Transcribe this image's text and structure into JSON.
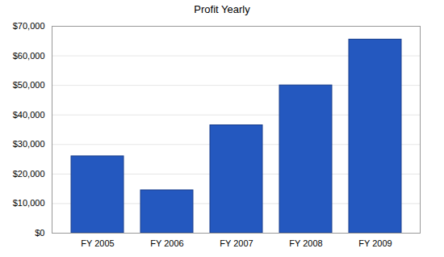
{
  "chart_data": {
    "type": "bar",
    "title": "Profit Yearly",
    "categories": [
      "FY 2005",
      "FY 2006",
      "FY 2007",
      "FY 2008",
      "FY 2009"
    ],
    "values": [
      26000,
      14500,
      36500,
      50000,
      65500
    ],
    "color": "#2458bf",
    "ylim": [
      0,
      70000
    ],
    "yticks": [
      {
        "value": 0,
        "label": "$0"
      },
      {
        "value": 10000,
        "label": "$10,000"
      },
      {
        "value": 20000,
        "label": "$20,000"
      },
      {
        "value": 30000,
        "label": "$30,000"
      },
      {
        "value": 40000,
        "label": "$40,000"
      },
      {
        "value": 50000,
        "label": "$50,000"
      },
      {
        "value": 60000,
        "label": "$60,000"
      },
      {
        "value": 70000,
        "label": "$70,000"
      }
    ],
    "grid": true
  }
}
